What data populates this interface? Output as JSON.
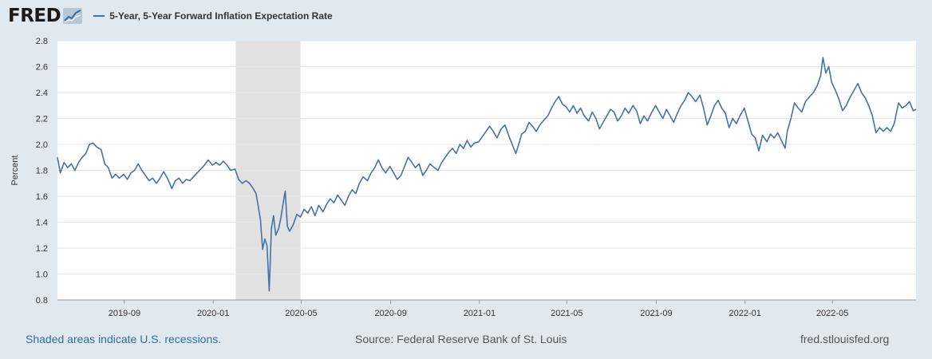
{
  "header": {
    "logo_text": "FRED",
    "logo_icon": "chart-line-icon",
    "series_label": "5-Year, 5-Year Forward Inflation Expectation Rate"
  },
  "footer": {
    "recession_note": "Shaded areas indicate U.S. recessions.",
    "source": "Source: Federal Reserve Bank of St. Louis",
    "site": "fred.stlouisfed.org"
  },
  "colors": {
    "page_bg": "#e1e9f0",
    "plot_bg": "#ffffff",
    "line": "#4572a7",
    "recession": "#e1e1e1",
    "grid": "#e6e6e6"
  },
  "chart_data": {
    "type": "line",
    "title": "",
    "xlabel": "",
    "ylabel": "Percent",
    "xlim": [
      "2019-06-01",
      "2022-08-24"
    ],
    "ylim": [
      0.8,
      2.8
    ],
    "y_ticks": [
      "0.8",
      "1.0",
      "1.2",
      "1.4",
      "1.6",
      "1.8",
      "2.0",
      "2.2",
      "2.4",
      "2.6",
      "2.8"
    ],
    "x_ticks": [
      {
        "label": "2019-09",
        "date": "2019-09-01"
      },
      {
        "label": "2020-01",
        "date": "2020-01-01"
      },
      {
        "label": "2020-05",
        "date": "2020-05-01"
      },
      {
        "label": "2020-09",
        "date": "2020-09-01"
      },
      {
        "label": "2021-01",
        "date": "2021-01-01"
      },
      {
        "label": "2021-05",
        "date": "2021-05-01"
      },
      {
        "label": "2021-09",
        "date": "2021-09-01"
      },
      {
        "label": "2022-01",
        "date": "2022-01-01"
      },
      {
        "label": "2022-05",
        "date": "2022-05-01"
      }
    ],
    "grid": true,
    "legend": "top-left",
    "recessions": [
      {
        "start": "2020-02-01",
        "end": "2020-04-30"
      }
    ],
    "series": [
      {
        "name": "5-Year, 5-Year Forward Inflation Expectation Rate",
        "points": [
          [
            "2019-06-01",
            1.9
          ],
          [
            "2019-06-05",
            1.78
          ],
          [
            "2019-06-10",
            1.86
          ],
          [
            "2019-06-15",
            1.82
          ],
          [
            "2019-06-20",
            1.85
          ],
          [
            "2019-06-25",
            1.8
          ],
          [
            "2019-06-30",
            1.86
          ],
          [
            "2019-07-05",
            1.9
          ],
          [
            "2019-07-10",
            1.93
          ],
          [
            "2019-07-15",
            2.0
          ],
          [
            "2019-07-20",
            2.01
          ],
          [
            "2019-07-25",
            1.98
          ],
          [
            "2019-07-31",
            1.96
          ],
          [
            "2019-08-05",
            1.85
          ],
          [
            "2019-08-10",
            1.82
          ],
          [
            "2019-08-15",
            1.74
          ],
          [
            "2019-08-20",
            1.77
          ],
          [
            "2019-08-25",
            1.74
          ],
          [
            "2019-08-31",
            1.77
          ],
          [
            "2019-09-05",
            1.73
          ],
          [
            "2019-09-10",
            1.78
          ],
          [
            "2019-09-15",
            1.8
          ],
          [
            "2019-09-20",
            1.85
          ],
          [
            "2019-09-25",
            1.8
          ],
          [
            "2019-09-30",
            1.76
          ],
          [
            "2019-10-05",
            1.72
          ],
          [
            "2019-10-10",
            1.74
          ],
          [
            "2019-10-15",
            1.7
          ],
          [
            "2019-10-20",
            1.74
          ],
          [
            "2019-10-25",
            1.79
          ],
          [
            "2019-10-31",
            1.73
          ],
          [
            "2019-11-05",
            1.66
          ],
          [
            "2019-11-10",
            1.72
          ],
          [
            "2019-11-15",
            1.74
          ],
          [
            "2019-11-20",
            1.7
          ],
          [
            "2019-11-25",
            1.73
          ],
          [
            "2019-11-30",
            1.72
          ],
          [
            "2019-12-05",
            1.75
          ],
          [
            "2019-12-10",
            1.78
          ],
          [
            "2019-12-15",
            1.81
          ],
          [
            "2019-12-20",
            1.84
          ],
          [
            "2019-12-25",
            1.88
          ],
          [
            "2019-12-31",
            1.84
          ],
          [
            "2020-01-05",
            1.86
          ],
          [
            "2020-01-10",
            1.84
          ],
          [
            "2020-01-15",
            1.87
          ],
          [
            "2020-01-20",
            1.84
          ],
          [
            "2020-01-25",
            1.8
          ],
          [
            "2020-01-31",
            1.81
          ],
          [
            "2020-02-05",
            1.73
          ],
          [
            "2020-02-10",
            1.7
          ],
          [
            "2020-02-15",
            1.72
          ],
          [
            "2020-02-20",
            1.7
          ],
          [
            "2020-02-25",
            1.66
          ],
          [
            "2020-02-29",
            1.62
          ],
          [
            "2020-03-03",
            1.52
          ],
          [
            "2020-03-06",
            1.42
          ],
          [
            "2020-03-09",
            1.19
          ],
          [
            "2020-03-12",
            1.27
          ],
          [
            "2020-03-15",
            1.22
          ],
          [
            "2020-03-18",
            0.87
          ],
          [
            "2020-03-21",
            1.35
          ],
          [
            "2020-03-24",
            1.45
          ],
          [
            "2020-03-27",
            1.3
          ],
          [
            "2020-03-31",
            1.35
          ],
          [
            "2020-04-03",
            1.43
          ],
          [
            "2020-04-06",
            1.54
          ],
          [
            "2020-04-09",
            1.64
          ],
          [
            "2020-04-12",
            1.37
          ],
          [
            "2020-04-15",
            1.33
          ],
          [
            "2020-04-20",
            1.38
          ],
          [
            "2020-04-25",
            1.46
          ],
          [
            "2020-04-30",
            1.44
          ],
          [
            "2020-05-05",
            1.5
          ],
          [
            "2020-05-10",
            1.47
          ],
          [
            "2020-05-15",
            1.52
          ],
          [
            "2020-05-20",
            1.45
          ],
          [
            "2020-05-25",
            1.53
          ],
          [
            "2020-05-31",
            1.48
          ],
          [
            "2020-06-05",
            1.54
          ],
          [
            "2020-06-10",
            1.58
          ],
          [
            "2020-06-15",
            1.55
          ],
          [
            "2020-06-20",
            1.61
          ],
          [
            "2020-06-25",
            1.57
          ],
          [
            "2020-06-30",
            1.53
          ],
          [
            "2020-07-05",
            1.6
          ],
          [
            "2020-07-10",
            1.65
          ],
          [
            "2020-07-15",
            1.62
          ],
          [
            "2020-07-20",
            1.7
          ],
          [
            "2020-07-25",
            1.75
          ],
          [
            "2020-07-31",
            1.72
          ],
          [
            "2020-08-05",
            1.78
          ],
          [
            "2020-08-10",
            1.82
          ],
          [
            "2020-08-15",
            1.88
          ],
          [
            "2020-08-20",
            1.82
          ],
          [
            "2020-08-25",
            1.78
          ],
          [
            "2020-08-31",
            1.83
          ],
          [
            "2020-09-05",
            1.78
          ],
          [
            "2020-09-10",
            1.73
          ],
          [
            "2020-09-15",
            1.76
          ],
          [
            "2020-09-20",
            1.83
          ],
          [
            "2020-09-25",
            1.9
          ],
          [
            "2020-09-30",
            1.86
          ],
          [
            "2020-10-05",
            1.82
          ],
          [
            "2020-10-10",
            1.85
          ],
          [
            "2020-10-15",
            1.76
          ],
          [
            "2020-10-20",
            1.8
          ],
          [
            "2020-10-25",
            1.85
          ],
          [
            "2020-10-31",
            1.82
          ],
          [
            "2020-11-05",
            1.8
          ],
          [
            "2020-11-10",
            1.86
          ],
          [
            "2020-11-15",
            1.9
          ],
          [
            "2020-11-20",
            1.94
          ],
          [
            "2020-11-25",
            1.97
          ],
          [
            "2020-11-30",
            1.93
          ],
          [
            "2020-12-05",
            2.0
          ],
          [
            "2020-12-10",
            1.97
          ],
          [
            "2020-12-15",
            2.03
          ],
          [
            "2020-12-20",
            1.98
          ],
          [
            "2020-12-25",
            2.01
          ],
          [
            "2020-12-31",
            2.02
          ],
          [
            "2021-01-05",
            2.06
          ],
          [
            "2021-01-10",
            2.1
          ],
          [
            "2021-01-15",
            2.14
          ],
          [
            "2021-01-20",
            2.1
          ],
          [
            "2021-01-25",
            2.05
          ],
          [
            "2021-01-31",
            2.12
          ],
          [
            "2021-02-05",
            2.15
          ],
          [
            "2021-02-10",
            2.07
          ],
          [
            "2021-02-15",
            2.0
          ],
          [
            "2021-02-20",
            1.93
          ],
          [
            "2021-02-25",
            2.02
          ],
          [
            "2021-02-28",
            2.08
          ],
          [
            "2021-03-05",
            2.1
          ],
          [
            "2021-03-10",
            2.17
          ],
          [
            "2021-03-15",
            2.14
          ],
          [
            "2021-03-20",
            2.1
          ],
          [
            "2021-03-25",
            2.15
          ],
          [
            "2021-03-31",
            2.19
          ],
          [
            "2021-04-05",
            2.22
          ],
          [
            "2021-04-10",
            2.28
          ],
          [
            "2021-04-15",
            2.33
          ],
          [
            "2021-04-20",
            2.37
          ],
          [
            "2021-04-25",
            2.31
          ],
          [
            "2021-04-30",
            2.29
          ],
          [
            "2021-05-05",
            2.25
          ],
          [
            "2021-05-10",
            2.3
          ],
          [
            "2021-05-15",
            2.24
          ],
          [
            "2021-05-20",
            2.28
          ],
          [
            "2021-05-25",
            2.22
          ],
          [
            "2021-05-31",
            2.18
          ],
          [
            "2021-06-05",
            2.25
          ],
          [
            "2021-06-10",
            2.2
          ],
          [
            "2021-06-15",
            2.12
          ],
          [
            "2021-06-20",
            2.17
          ],
          [
            "2021-06-25",
            2.22
          ],
          [
            "2021-06-30",
            2.27
          ],
          [
            "2021-07-05",
            2.25
          ],
          [
            "2021-07-10",
            2.18
          ],
          [
            "2021-07-15",
            2.22
          ],
          [
            "2021-07-20",
            2.28
          ],
          [
            "2021-07-25",
            2.24
          ],
          [
            "2021-07-31",
            2.3
          ],
          [
            "2021-08-05",
            2.26
          ],
          [
            "2021-08-10",
            2.16
          ],
          [
            "2021-08-15",
            2.22
          ],
          [
            "2021-08-20",
            2.18
          ],
          [
            "2021-08-25",
            2.24
          ],
          [
            "2021-08-31",
            2.3
          ],
          [
            "2021-09-05",
            2.25
          ],
          [
            "2021-09-10",
            2.2
          ],
          [
            "2021-09-15",
            2.27
          ],
          [
            "2021-09-20",
            2.22
          ],
          [
            "2021-09-25",
            2.17
          ],
          [
            "2021-09-30",
            2.24
          ],
          [
            "2021-10-05",
            2.3
          ],
          [
            "2021-10-10",
            2.34
          ],
          [
            "2021-10-15",
            2.4
          ],
          [
            "2021-10-20",
            2.37
          ],
          [
            "2021-10-25",
            2.33
          ],
          [
            "2021-10-31",
            2.38
          ],
          [
            "2021-11-05",
            2.28
          ],
          [
            "2021-11-10",
            2.15
          ],
          [
            "2021-11-15",
            2.22
          ],
          [
            "2021-11-20",
            2.3
          ],
          [
            "2021-11-25",
            2.34
          ],
          [
            "2021-11-30",
            2.28
          ],
          [
            "2021-12-05",
            2.24
          ],
          [
            "2021-12-10",
            2.13
          ],
          [
            "2021-12-15",
            2.2
          ],
          [
            "2021-12-20",
            2.16
          ],
          [
            "2021-12-25",
            2.22
          ],
          [
            "2021-12-31",
            2.28
          ],
          [
            "2022-01-05",
            2.18
          ],
          [
            "2022-01-10",
            2.08
          ],
          [
            "2022-01-15",
            2.05
          ],
          [
            "2022-01-20",
            1.95
          ],
          [
            "2022-01-25",
            2.07
          ],
          [
            "2022-01-31",
            2.02
          ],
          [
            "2022-02-05",
            2.08
          ],
          [
            "2022-02-10",
            2.05
          ],
          [
            "2022-02-15",
            2.09
          ],
          [
            "2022-02-20",
            2.03
          ],
          [
            "2022-02-25",
            1.97
          ],
          [
            "2022-02-28",
            2.1
          ],
          [
            "2022-03-05",
            2.2
          ],
          [
            "2022-03-10",
            2.32
          ],
          [
            "2022-03-15",
            2.28
          ],
          [
            "2022-03-20",
            2.25
          ],
          [
            "2022-03-25",
            2.33
          ],
          [
            "2022-03-31",
            2.37
          ],
          [
            "2022-04-05",
            2.4
          ],
          [
            "2022-04-10",
            2.45
          ],
          [
            "2022-04-15",
            2.53
          ],
          [
            "2022-04-18",
            2.67
          ],
          [
            "2022-04-22",
            2.55
          ],
          [
            "2022-04-26",
            2.6
          ],
          [
            "2022-04-30",
            2.48
          ],
          [
            "2022-05-05",
            2.42
          ],
          [
            "2022-05-10",
            2.35
          ],
          [
            "2022-05-15",
            2.26
          ],
          [
            "2022-05-20",
            2.3
          ],
          [
            "2022-05-25",
            2.36
          ],
          [
            "2022-05-31",
            2.42
          ],
          [
            "2022-06-05",
            2.47
          ],
          [
            "2022-06-10",
            2.4
          ],
          [
            "2022-06-15",
            2.36
          ],
          [
            "2022-06-20",
            2.3
          ],
          [
            "2022-06-25",
            2.22
          ],
          [
            "2022-06-30",
            2.09
          ],
          [
            "2022-07-05",
            2.13
          ],
          [
            "2022-07-10",
            2.1
          ],
          [
            "2022-07-15",
            2.13
          ],
          [
            "2022-07-20",
            2.1
          ],
          [
            "2022-07-25",
            2.16
          ],
          [
            "2022-07-31",
            2.32
          ],
          [
            "2022-08-05",
            2.28
          ],
          [
            "2022-08-10",
            2.3
          ],
          [
            "2022-08-15",
            2.33
          ],
          [
            "2022-08-20",
            2.26
          ],
          [
            "2022-08-24",
            2.27
          ]
        ]
      }
    ]
  }
}
